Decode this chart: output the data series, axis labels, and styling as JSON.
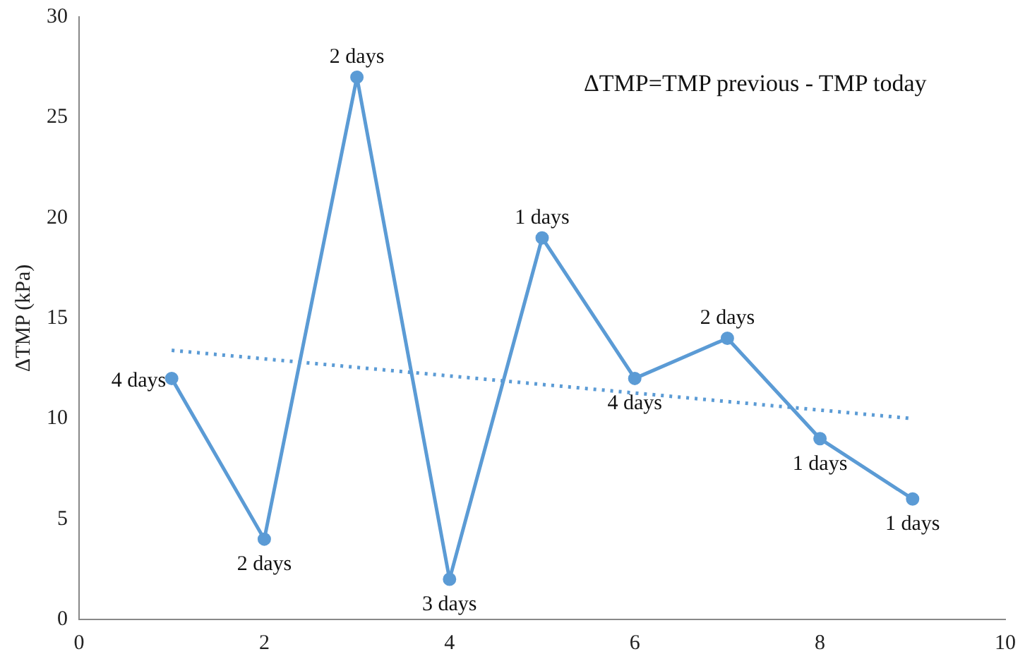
{
  "chart_data": {
    "type": "line",
    "ylabel": "ΔTMP (kPa)",
    "annotations": [
      "ΔTMP=TMP previous - TMP today",
      {
        "text": "4 days",
        "x": 1,
        "y": 12
      },
      {
        "text": "2 days",
        "x": 2,
        "y": 4
      },
      {
        "text": "2 days",
        "x": 3,
        "y": 27
      },
      {
        "text": "3 days",
        "x": 4,
        "y": 2
      },
      {
        "text": "1 days",
        "x": 5,
        "y": 19
      },
      {
        "text": "4 days",
        "x": 6,
        "y": 12
      },
      {
        "text": "2 days",
        "x": 7,
        "y": 14
      },
      {
        "text": "1 days",
        "x": 8,
        "y": 9
      },
      {
        "text": "1 days",
        "x": 9,
        "y": 6
      }
    ],
    "x": [
      1,
      2,
      3,
      4,
      5,
      6,
      7,
      8,
      9
    ],
    "series": [
      {
        "color": "#5b9bd5",
        "values": [
          12,
          4,
          27,
          2,
          19,
          12,
          14,
          9,
          6
        ],
        "marker": "circle",
        "line_style": "solid"
      },
      {
        "type": "line",
        "x": [
          1,
          9
        ],
        "color": "#5b9bd5",
        "values": [
          13.4,
          10
        ],
        "marker": "none",
        "line_style": "dotted"
      }
    ],
    "xlim": [
      0,
      10
    ],
    "xticks": [
      0,
      2,
      4,
      6,
      8,
      10
    ],
    "ylim": [
      0,
      30
    ],
    "yticks": [
      0,
      5,
      10,
      15,
      20,
      25,
      30
    ],
    "grid": false,
    "legend": false
  }
}
